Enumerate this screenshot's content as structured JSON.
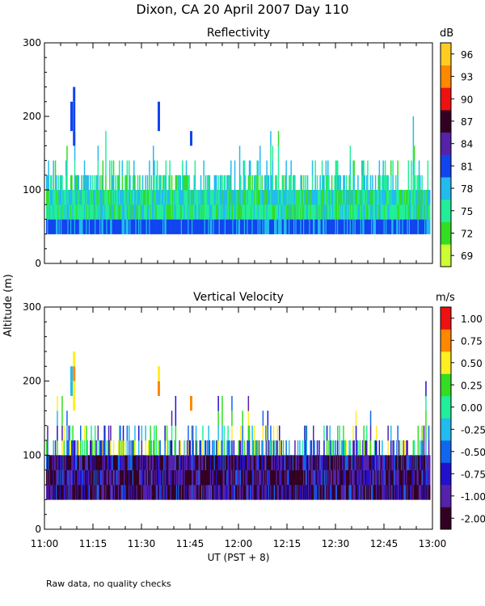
{
  "title": "Dixon, CA 20 April 2007  Day 110",
  "footer_note": "Raw data, no quality checks",
  "ylabel": "Altitude (m)",
  "xlabel": "UT  (PST + 8)",
  "chart_data": [
    {
      "type": "heatmap",
      "title": "Reflectivity",
      "colorbar_unit": "dB",
      "xlabel": "UT  (PST + 8)",
      "ylabel": "Altitude (m)",
      "x_range_minutes": [
        0,
        120
      ],
      "x_ticks": [
        "11:00",
        "11:15",
        "11:30",
        "11:45",
        "12:00",
        "12:15",
        "12:30",
        "12:45",
        "13:00"
      ],
      "ylim": [
        0,
        300
      ],
      "y_ticks": [
        0,
        100,
        200,
        300
      ],
      "colorbar_ticks": [
        "69",
        "72",
        "75",
        "78",
        "81",
        "84",
        "87",
        "90",
        "93",
        "96"
      ],
      "colorbar_colors": [
        "#ccff33",
        "#33dd22",
        "#22ee99",
        "#22bbee",
        "#1144ee",
        "#5522aa",
        "#330022",
        "#ee1111",
        "#ff8800",
        "#ffcc22"
      ],
      "data_summary": {
        "echo_base_altitude_m": 40,
        "typical_top_altitude_m": [
          100,
          140
        ],
        "max_top_altitude_m": 240,
        "dominant_values_db": [
          72,
          75,
          78
        ],
        "near_base_values_db": [
          81
        ]
      }
    },
    {
      "type": "heatmap",
      "title": "Vertical Velocity",
      "colorbar_unit": "m/s",
      "xlabel": "UT  (PST + 8)",
      "ylabel": "Altitude (m)",
      "x_range_minutes": [
        0,
        120
      ],
      "x_ticks": [
        "11:00",
        "11:15",
        "11:30",
        "11:45",
        "12:00",
        "12:15",
        "12:30",
        "12:45",
        "13:00"
      ],
      "ylim": [
        0,
        300
      ],
      "y_ticks": [
        0,
        100,
        200,
        300
      ],
      "colorbar_ticks": [
        "-2.00",
        "-1.00",
        "-0.75",
        "-0.50",
        "-0.25",
        "0.00",
        "0.25",
        "0.50",
        "0.75",
        "1.00"
      ],
      "colorbar_colors": [
        "#330022",
        "#5522aa",
        "#2211cc",
        "#1166ee",
        "#22bbee",
        "#22ee99",
        "#33dd22",
        "#ffee22",
        "#ff8800",
        "#ee1111"
      ],
      "data_summary": {
        "echo_base_altitude_m": 40,
        "typical_top_altitude_m": [
          100,
          140
        ],
        "max_top_altitude_m": 240,
        "dominant_values_ms": [
          -2.0,
          -1.0,
          -0.75
        ],
        "upper_values_ms": [
          -0.25,
          0.0
        ]
      }
    }
  ]
}
